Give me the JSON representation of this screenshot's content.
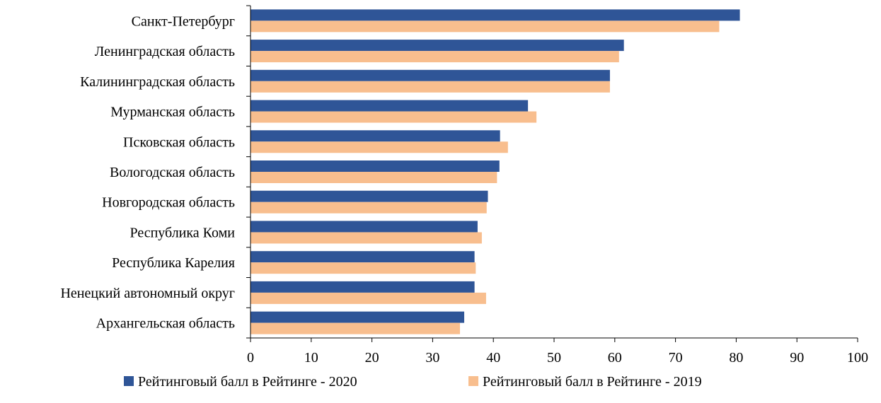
{
  "chart_data": {
    "type": "bar",
    "orientation": "horizontal",
    "title": "",
    "xlabel": "",
    "ylabel": "",
    "xlim": [
      0,
      100
    ],
    "x_ticks": [
      0,
      10,
      20,
      30,
      40,
      50,
      60,
      70,
      80,
      90,
      100
    ],
    "grid": false,
    "legend_position": "bottom",
    "categories": [
      "Санкт-Петербург",
      "Ленинградская область",
      "Калининградская область",
      "Мурманская область",
      "Псковская область",
      "Вологодская область",
      "Новгородская область",
      "Республика Коми",
      "Республика Карелия",
      "Ненецкий автономный округ",
      "Архангельская область"
    ],
    "series": [
      {
        "name": "Рейтинговый балл в Рейтинге - 2020",
        "color": "#2F5597",
        "values": [
          80.6,
          61.5,
          59.2,
          45.7,
          41.1,
          41.0,
          39.1,
          37.4,
          36.9,
          36.9,
          35.2
        ]
      },
      {
        "name": "Рейтинговый балл в Рейтинге - 2019",
        "color": "#F8BE8E",
        "values": [
          77.2,
          60.7,
          59.2,
          47.1,
          42.4,
          40.6,
          38.9,
          38.1,
          37.1,
          38.8,
          34.5
        ]
      }
    ]
  }
}
